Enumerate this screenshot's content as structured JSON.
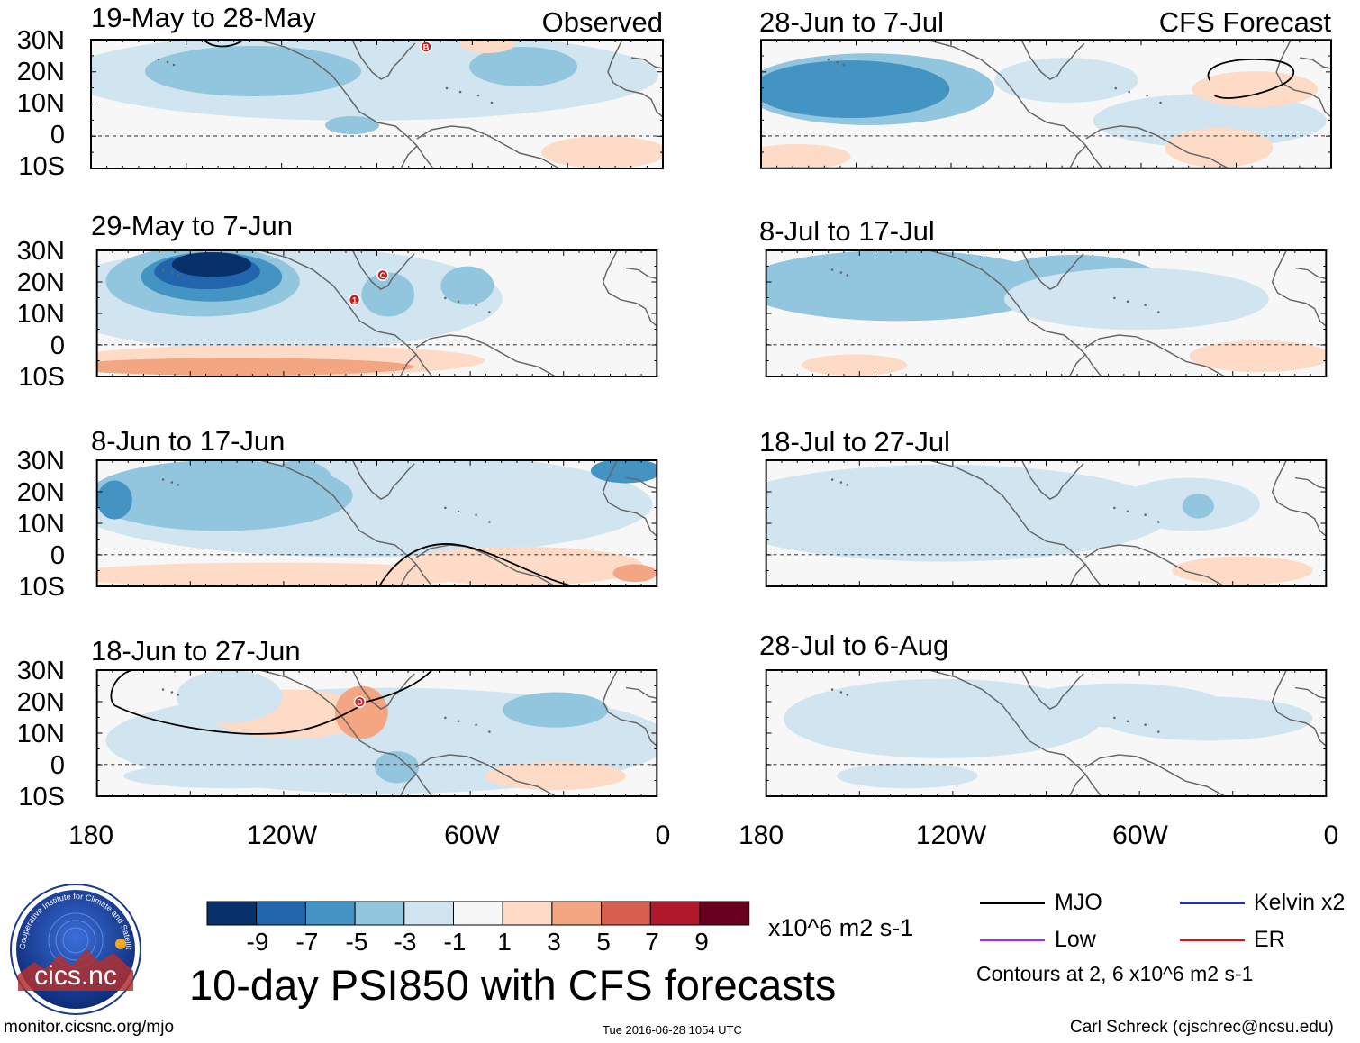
{
  "header": {
    "observed_label": "Observed",
    "forecast_label": "CFS Forecast"
  },
  "panels": [
    {
      "title": "19-May to 28-May",
      "kind": "observed"
    },
    {
      "title": "29-May to 7-Jun",
      "kind": "observed"
    },
    {
      "title": "8-Jun to 17-Jun",
      "kind": "observed"
    },
    {
      "title": "18-Jun to 27-Jun",
      "kind": "observed"
    },
    {
      "title": "28-Jun to 7-Jul",
      "kind": "forecast"
    },
    {
      "title": "8-Jul to 17-Jul",
      "kind": "forecast"
    },
    {
      "title": "18-Jul to 27-Jul",
      "kind": "forecast"
    },
    {
      "title": "28-Jul to 6-Aug",
      "kind": "forecast"
    }
  ],
  "axes": {
    "lat_labels": [
      "30N",
      "20N",
      "10N",
      "0",
      "10S"
    ],
    "lon_labels": [
      "180",
      "120W",
      "60W",
      "0"
    ]
  },
  "storm_markers": [
    {
      "panel": 0,
      "letter": "B"
    },
    {
      "panel": 1,
      "letter": "C"
    },
    {
      "panel": 1,
      "letter": "1"
    },
    {
      "panel": 3,
      "letter": "D"
    }
  ],
  "colorbar": {
    "colors": [
      "#08306b",
      "#2166ac",
      "#4393c3",
      "#92c5de",
      "#d1e5f0",
      "#f7f7f7",
      "#fddbc7",
      "#f4a582",
      "#d6604d",
      "#b2182b",
      "#67001f"
    ],
    "tick_labels": [
      "-9",
      "-7",
      "-5",
      "-3",
      "-1",
      "1",
      "3",
      "5",
      "7",
      "9"
    ],
    "units": "x10^6 m2 s-1"
  },
  "legend": {
    "items": [
      {
        "label": "MJO",
        "color": "#000000"
      },
      {
        "label": "Kelvin x2",
        "color": "#1f2fd0"
      },
      {
        "label": "Low",
        "color": "#9b30ff"
      },
      {
        "label": "ER",
        "color": "#e01010"
      }
    ],
    "contours_note": "Contours at 2, 6 x10^6 m2 s-1"
  },
  "title": "10-day PSI850 with CFS forecasts",
  "logo_text": "cics.nc",
  "logo_ring_text": "Cooperative Institute for Climate and Satellites",
  "footer": {
    "left": "monitor.cicsnc.org/mjo",
    "center": "Tue 2016-06-28 1054 UTC",
    "right": "Carl Schreck (cjschrec@ncsu.edu)"
  }
}
